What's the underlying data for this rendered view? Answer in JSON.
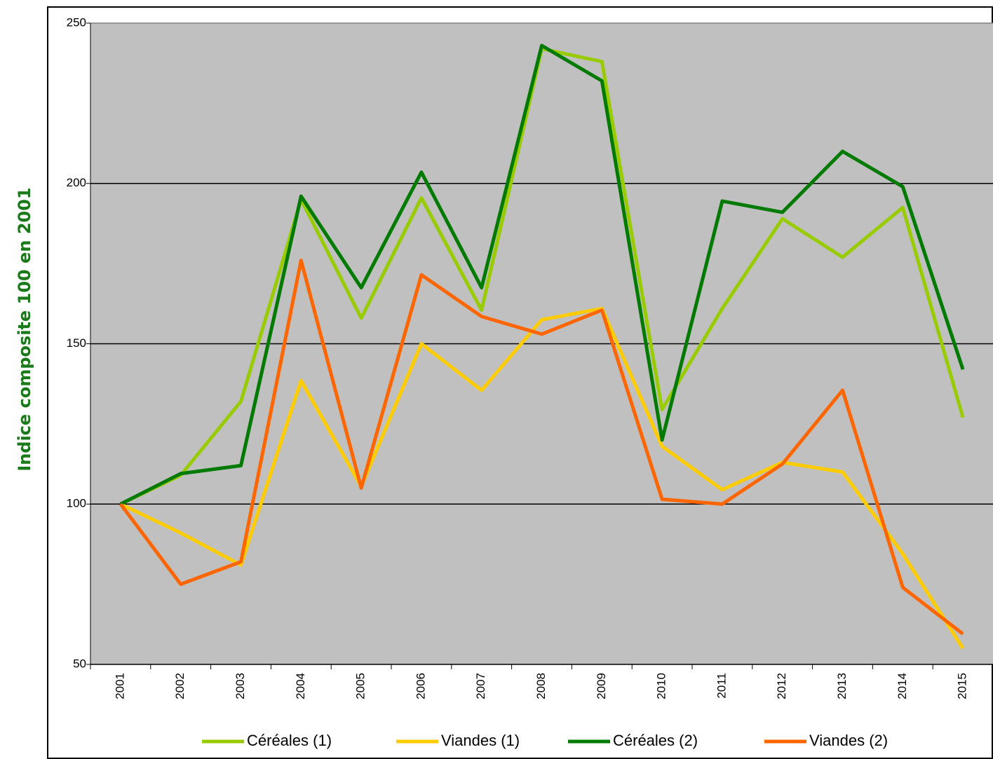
{
  "chart_data": {
    "type": "line",
    "y_label": "Indice composite 100 en 2001",
    "categories": [
      "2001",
      "2002",
      "2003",
      "2004",
      "2005",
      "2006",
      "2007",
      "2008",
      "2009",
      "2010",
      "2011",
      "2012",
      "2013",
      "2014",
      "2015"
    ],
    "series": [
      {
        "name": "Céréales (1)",
        "color": "#99cc00",
        "values": [
          100,
          109,
          132,
          195,
          158,
          195.5,
          160.5,
          242,
          238,
          129.5,
          161,
          189,
          177,
          192.5,
          127
        ]
      },
      {
        "name": "Viandes (1)",
        "color": "#ffcc00",
        "values": [
          100,
          91,
          81,
          138.5,
          105.5,
          150,
          135.5,
          157.5,
          161,
          118,
          104.5,
          113,
          110,
          84.5,
          55
        ]
      },
      {
        "name": "Céréales (2)",
        "color": "#007a00",
        "values": [
          100,
          109.5,
          112,
          196,
          167.5,
          203.5,
          167.5,
          243,
          232,
          120,
          194.5,
          191,
          210,
          199,
          142
        ]
      },
      {
        "name": "Viandes (2)",
        "color": "#ff6600",
        "values": [
          100,
          75,
          82,
          176,
          105,
          171.5,
          158.5,
          153,
          160.5,
          101.5,
          100,
          112.5,
          135.5,
          74,
          59.5
        ]
      }
    ],
    "ylim": [
      50,
      250
    ],
    "yticks": [
      50,
      100,
      150,
      200,
      250
    ],
    "grid": true,
    "legend": "bottom"
  }
}
